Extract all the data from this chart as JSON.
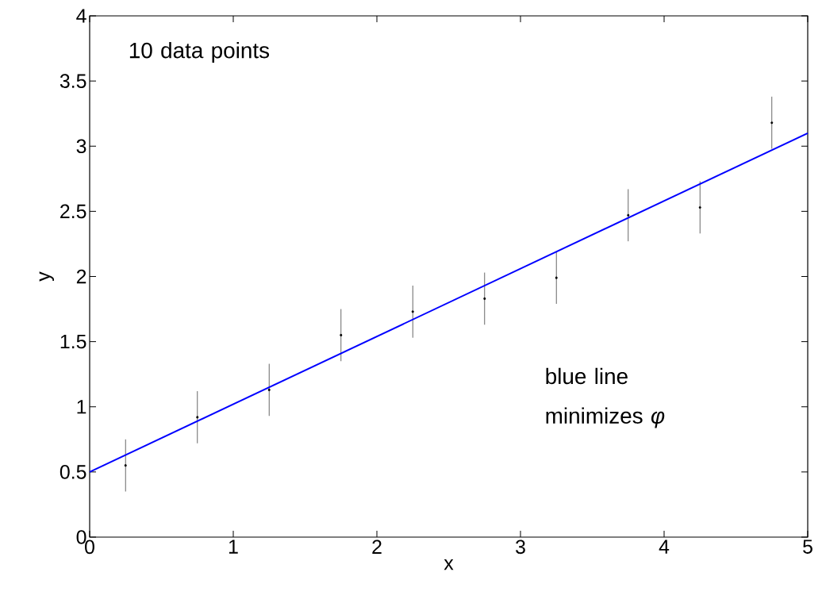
{
  "chart_data": {
    "type": "scatter",
    "xlabel": "x",
    "ylabel": "y",
    "xlim": [
      0,
      5
    ],
    "ylim": [
      0,
      4
    ],
    "xticks": [
      0,
      1,
      2,
      3,
      4,
      5
    ],
    "yticks": [
      0,
      0.5,
      1,
      1.5,
      2,
      2.5,
      3,
      3.5,
      4
    ],
    "marker": "circle",
    "series": [
      {
        "color": "#000000",
        "x": [
          0.25,
          0.75,
          1.25,
          1.75,
          2.25,
          2.75,
          3.25,
          3.75,
          4.25,
          4.75
        ],
        "values": [
          0.55,
          0.92,
          1.13,
          1.55,
          1.73,
          1.83,
          1.99,
          2.47,
          2.53,
          3.18
        ],
        "errors": [
          0.2,
          0.2,
          0.2,
          0.2,
          0.2,
          0.2,
          0.2,
          0.2,
          0.2,
          0.2
        ]
      },
      {
        "type": "line",
        "color": "#0000ff",
        "marker": "none",
        "x": [
          0,
          5
        ],
        "values": [
          0.5,
          3.1
        ]
      }
    ],
    "annotations": [
      "10 data points",
      "blue line minimizes *φ*"
    ]
  }
}
